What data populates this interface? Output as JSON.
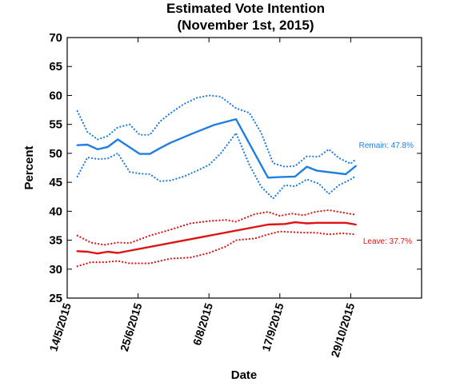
{
  "chart_data": {
    "type": "line",
    "title_line1": "Estimated Vote Intention",
    "title_line2": "(November 1st, 2015)",
    "xlabel": "Date",
    "ylabel": "Percent",
    "ylim": [
      25,
      70
    ],
    "yticks": [
      25,
      30,
      35,
      40,
      45,
      50,
      55,
      60,
      65,
      70
    ],
    "xlim": [
      "2015-05-14",
      "2015-12-10"
    ],
    "xticks": [
      {
        "date": "2015-05-14",
        "label": "14/5/2015"
      },
      {
        "date": "2015-06-25",
        "label": "25/6/2015"
      },
      {
        "date": "2015-08-06",
        "label": "6/8/2015"
      },
      {
        "date": "2015-09-17",
        "label": "17/9/2015"
      },
      {
        "date": "2015-10-29",
        "label": "29/10/2015"
      }
    ],
    "grid": false,
    "colors": {
      "remain": "#1f7fe0",
      "leave": "#e01212"
    },
    "series": [
      {
        "name": "Remain",
        "label": "Remain: 47.8%",
        "style": "solid",
        "x": [
          "2015-05-20",
          "2015-05-26",
          "2015-06-01",
          "2015-06-07",
          "2015-06-13",
          "2015-06-26",
          "2015-07-02",
          "2015-07-08",
          "2015-07-14",
          "2015-07-27",
          "2015-08-09",
          "2015-08-22",
          "2015-09-10",
          "2015-09-17",
          "2015-09-26",
          "2015-10-03",
          "2015-10-09",
          "2015-10-26",
          "2015-11-01"
        ],
        "y": [
          51.4,
          51.5,
          50.7,
          51.1,
          52.4,
          49.9,
          49.9,
          50.9,
          51.8,
          53.4,
          54.9,
          55.9,
          45.8,
          45.9,
          46.0,
          47.7,
          47.0,
          46.4,
          47.8
        ]
      },
      {
        "name": "Remain upper",
        "style": "dotted",
        "color_key": "remain",
        "x": [
          "2015-05-20",
          "2015-05-26",
          "2015-06-01",
          "2015-06-07",
          "2015-06-13",
          "2015-06-20",
          "2015-06-26",
          "2015-07-02",
          "2015-07-08",
          "2015-07-14",
          "2015-07-22",
          "2015-07-30",
          "2015-08-06",
          "2015-08-13",
          "2015-08-22",
          "2015-08-30",
          "2015-09-06",
          "2015-09-13",
          "2015-09-20",
          "2015-09-26",
          "2015-10-03",
          "2015-10-10",
          "2015-10-16",
          "2015-10-22",
          "2015-10-29",
          "2015-11-01"
        ],
        "y": [
          57.3,
          53.7,
          52.4,
          53.0,
          54.5,
          55.0,
          53.2,
          53.2,
          55.5,
          56.9,
          58.5,
          59.6,
          60.0,
          59.8,
          57.8,
          57.0,
          53.5,
          48.3,
          47.7,
          47.8,
          49.5,
          49.4,
          50.7,
          49.2,
          48.2,
          49.0
        ]
      },
      {
        "name": "Remain lower",
        "style": "dotted",
        "color_key": "remain",
        "x": [
          "2015-05-20",
          "2015-05-26",
          "2015-06-01",
          "2015-06-07",
          "2015-06-13",
          "2015-06-20",
          "2015-06-26",
          "2015-07-02",
          "2015-07-08",
          "2015-07-14",
          "2015-07-22",
          "2015-07-30",
          "2015-08-06",
          "2015-08-13",
          "2015-08-22",
          "2015-08-30",
          "2015-09-06",
          "2015-09-13",
          "2015-09-20",
          "2015-09-26",
          "2015-10-03",
          "2015-10-10",
          "2015-10-16",
          "2015-10-22",
          "2015-10-29",
          "2015-11-01"
        ],
        "y": [
          46.0,
          49.3,
          49.0,
          49.1,
          50.0,
          46.8,
          46.5,
          46.4,
          45.2,
          45.3,
          46.0,
          47.0,
          48.0,
          50.0,
          53.5,
          48.0,
          44.2,
          42.2,
          44.5,
          44.3,
          45.5,
          44.8,
          43.0,
          44.5,
          45.5,
          46.1
        ]
      },
      {
        "name": "Leave",
        "label": "Leave: 37.7%",
        "style": "solid",
        "x": [
          "2015-05-20",
          "2015-05-26",
          "2015-06-01",
          "2015-06-07",
          "2015-06-13",
          "2015-09-10",
          "2015-09-20",
          "2015-09-26",
          "2015-10-03",
          "2015-10-09",
          "2015-10-26",
          "2015-11-01"
        ],
        "y": [
          33.1,
          33.0,
          32.7,
          33.0,
          32.8,
          37.7,
          37.8,
          38.1,
          37.9,
          38.0,
          38.0,
          37.7
        ]
      },
      {
        "name": "Leave upper",
        "style": "dotted",
        "color_key": "leave",
        "x": [
          "2015-05-20",
          "2015-05-28",
          "2015-06-05",
          "2015-06-13",
          "2015-06-20",
          "2015-07-02",
          "2015-07-14",
          "2015-07-26",
          "2015-08-06",
          "2015-08-16",
          "2015-08-22",
          "2015-09-02",
          "2015-09-10",
          "2015-09-17",
          "2015-09-24",
          "2015-10-01",
          "2015-10-08",
          "2015-10-16",
          "2015-10-24",
          "2015-11-01"
        ],
        "y": [
          35.8,
          34.6,
          34.2,
          34.6,
          34.5,
          35.8,
          36.8,
          37.9,
          38.3,
          38.5,
          38.2,
          39.5,
          39.9,
          39.2,
          39.6,
          39.3,
          39.9,
          40.2,
          39.8,
          39.4
        ]
      },
      {
        "name": "Leave lower",
        "style": "dotted",
        "color_key": "leave",
        "x": [
          "2015-05-20",
          "2015-05-28",
          "2015-06-05",
          "2015-06-13",
          "2015-06-20",
          "2015-07-02",
          "2015-07-14",
          "2015-07-26",
          "2015-08-06",
          "2015-08-16",
          "2015-08-22",
          "2015-09-02",
          "2015-09-10",
          "2015-09-17",
          "2015-09-24",
          "2015-10-01",
          "2015-10-08",
          "2015-10-16",
          "2015-10-24",
          "2015-11-01"
        ],
        "y": [
          30.5,
          31.2,
          31.2,
          31.4,
          31.0,
          31.0,
          31.8,
          32.0,
          32.8,
          33.9,
          35.0,
          35.3,
          36.0,
          36.5,
          36.4,
          36.3,
          36.3,
          36.0,
          36.2,
          36.0
        ]
      }
    ]
  }
}
